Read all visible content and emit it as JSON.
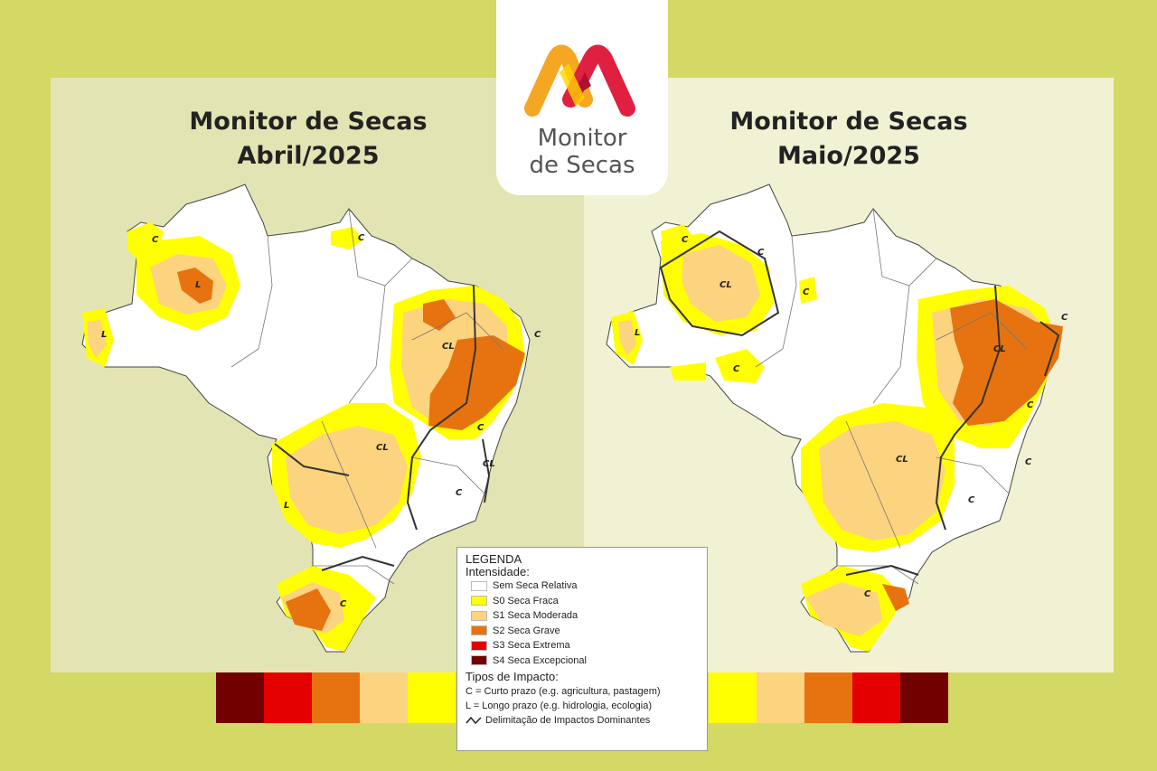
{
  "maps": {
    "left": {
      "title_line1": "Monitor de Secas",
      "title_line2": "Abril/2025"
    },
    "right": {
      "title_line1": "Monitor de Secas",
      "title_line2": "Maio/2025"
    }
  },
  "logo": {
    "line1": "Monitor",
    "line2": "de Secas"
  },
  "impact_labels": {
    "C": "C",
    "L": "L",
    "CL": "CL"
  },
  "legend": {
    "title": "LEGENDA",
    "intensity_title": "Intensidade:",
    "items": [
      {
        "label": "Sem Seca Relativa",
        "color": "#ffffff"
      },
      {
        "label": "S0 Seca Fraca",
        "color": "#ffff00"
      },
      {
        "label": "S1 Seca Moderada",
        "color": "#fcd37f"
      },
      {
        "label": "S2 Seca Grave",
        "color": "#e6730f"
      },
      {
        "label": "S3 Seca Extrema",
        "color": "#e50000"
      },
      {
        "label": "S4 Seca Excepcional",
        "color": "#730000"
      }
    ],
    "impact_title": "Tipos de Impacto:",
    "impact_c": "C = Curto prazo (e.g. agricultura, pastagem)",
    "impact_l": "L = Longo prazo (e.g. hidrologia, ecologia)",
    "impact_line": "Delimitação de Impactos Dominantes"
  },
  "scale_colors": [
    "#730000",
    "#e50000",
    "#e6730f",
    "#fcd37f",
    "#ffff00"
  ]
}
